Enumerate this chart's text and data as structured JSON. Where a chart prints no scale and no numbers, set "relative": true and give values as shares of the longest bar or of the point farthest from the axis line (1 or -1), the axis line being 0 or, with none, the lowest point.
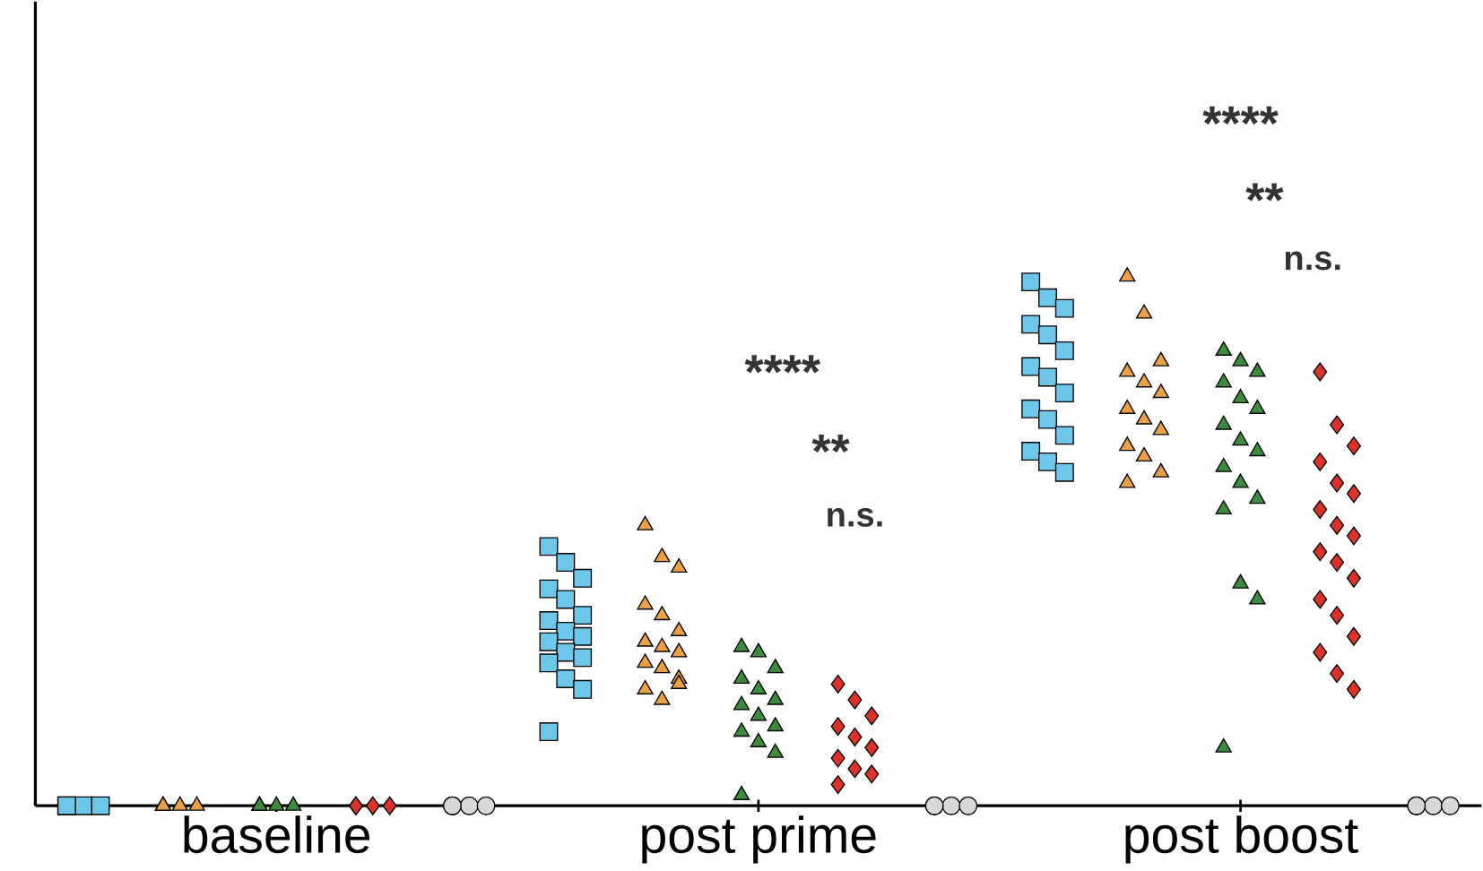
{
  "chart_data": {
    "type": "scatter",
    "relative": true,
    "categories": [
      "baseline",
      "post prime",
      "post boost"
    ],
    "series": [
      {
        "color": "#6ec6e8",
        "marker": "square",
        "x": [
          "baseline",
          "baseline",
          "baseline",
          "baseline",
          "post prime",
          "post prime",
          "post prime",
          "post prime",
          "post prime",
          "post prime",
          "post prime",
          "post prime",
          "post prime",
          "post prime",
          "post prime",
          "post prime",
          "post prime",
          "post prime",
          "post prime",
          "post prime",
          "post boost",
          "post boost",
          "post boost",
          "post boost",
          "post boost",
          "post boost",
          "post boost",
          "post boost",
          "post boost",
          "post boost",
          "post boost",
          "post boost",
          "post boost",
          "post boost",
          "post boost"
        ],
        "values": [
          0,
          0,
          0,
          0,
          0.49,
          0.46,
          0.43,
          0.41,
          0.39,
          0.36,
          0.35,
          0.33,
          0.32,
          0.31,
          0.29,
          0.28,
          0.27,
          0.24,
          0.22,
          0.14,
          0.99,
          0.96,
          0.94,
          0.91,
          0.89,
          0.86,
          0.83,
          0.81,
          0.78,
          0.75,
          0.73,
          0.7,
          0.67,
          0.65,
          0.63
        ]
      },
      {
        "color": "#e8a04a",
        "marker": "triangle",
        "x": [
          "baseline",
          "baseline",
          "baseline",
          "baseline",
          "post prime",
          "post prime",
          "post prime",
          "post prime",
          "post prime",
          "post prime",
          "post prime",
          "post prime",
          "post prime",
          "post prime",
          "post prime",
          "post prime",
          "post prime",
          "post prime",
          "post prime",
          "post boost",
          "post boost",
          "post boost",
          "post boost",
          "post boost",
          "post boost",
          "post boost",
          "post boost",
          "post boost",
          "post boost",
          "post boost",
          "post boost",
          "post boost"
        ],
        "values": [
          0,
          0,
          0,
          0,
          0.53,
          0.47,
          0.45,
          0.38,
          0.36,
          0.33,
          0.31,
          0.3,
          0.29,
          0.27,
          0.26,
          0.24,
          0.22,
          0.2,
          0.23,
          1.0,
          0.93,
          0.84,
          0.82,
          0.8,
          0.78,
          0.75,
          0.73,
          0.71,
          0.68,
          0.66,
          0.63,
          0.61
        ]
      },
      {
        "color": "#3e8a3e",
        "marker": "triangle",
        "x": [
          "baseline",
          "baseline",
          "baseline",
          "baseline",
          "post prime",
          "post prime",
          "post prime",
          "post prime",
          "post prime",
          "post prime",
          "post prime",
          "post prime",
          "post prime",
          "post prime",
          "post prime",
          "post prime",
          "post prime",
          "post boost",
          "post boost",
          "post boost",
          "post boost",
          "post boost",
          "post boost",
          "post boost",
          "post boost",
          "post boost",
          "post boost",
          "post boost",
          "post boost",
          "post boost",
          "post boost",
          "post boost",
          "post boost"
        ],
        "values": [
          0,
          0,
          0,
          0,
          0.3,
          0.29,
          0.26,
          0.24,
          0.22,
          0.2,
          0.19,
          0.17,
          0.15,
          0.14,
          0.12,
          0.1,
          0.02,
          0.86,
          0.84,
          0.82,
          0.8,
          0.77,
          0.75,
          0.72,
          0.69,
          0.67,
          0.64,
          0.61,
          0.58,
          0.56,
          0.42,
          0.39,
          0.11
        ]
      },
      {
        "color": "#d9342b",
        "marker": "diamond",
        "x": [
          "baseline",
          "baseline",
          "baseline",
          "baseline",
          "post prime",
          "post prime",
          "post prime",
          "post prime",
          "post prime",
          "post prime",
          "post prime",
          "post prime",
          "post prime",
          "post prime",
          "post boost",
          "post boost",
          "post boost",
          "post boost",
          "post boost",
          "post boost",
          "post boost",
          "post boost",
          "post boost",
          "post boost",
          "post boost",
          "post boost",
          "post boost",
          "post boost",
          "post boost",
          "post boost",
          "post boost",
          "post boost"
        ],
        "values": [
          0,
          0,
          0,
          0,
          0.23,
          0.2,
          0.17,
          0.15,
          0.13,
          0.11,
          0.09,
          0.07,
          0.06,
          0.04,
          0.82,
          0.72,
          0.68,
          0.65,
          0.61,
          0.59,
          0.56,
          0.53,
          0.51,
          0.48,
          0.46,
          0.43,
          0.39,
          0.36,
          0.32,
          0.29,
          0.25,
          0.22
        ]
      },
      {
        "color": "#d8d8d8",
        "marker": "circle",
        "x": [
          "baseline",
          "baseline",
          "baseline",
          "baseline",
          "post prime",
          "post prime",
          "post prime",
          "post prime",
          "post boost",
          "post boost",
          "post boost",
          "post boost"
        ],
        "values": [
          0,
          0,
          0,
          0,
          0,
          0,
          0,
          0,
          0,
          0,
          0,
          0
        ]
      }
    ],
    "annotations": [
      "****",
      "**",
      "n.s.",
      "****",
      "**",
      "n.s."
    ]
  }
}
